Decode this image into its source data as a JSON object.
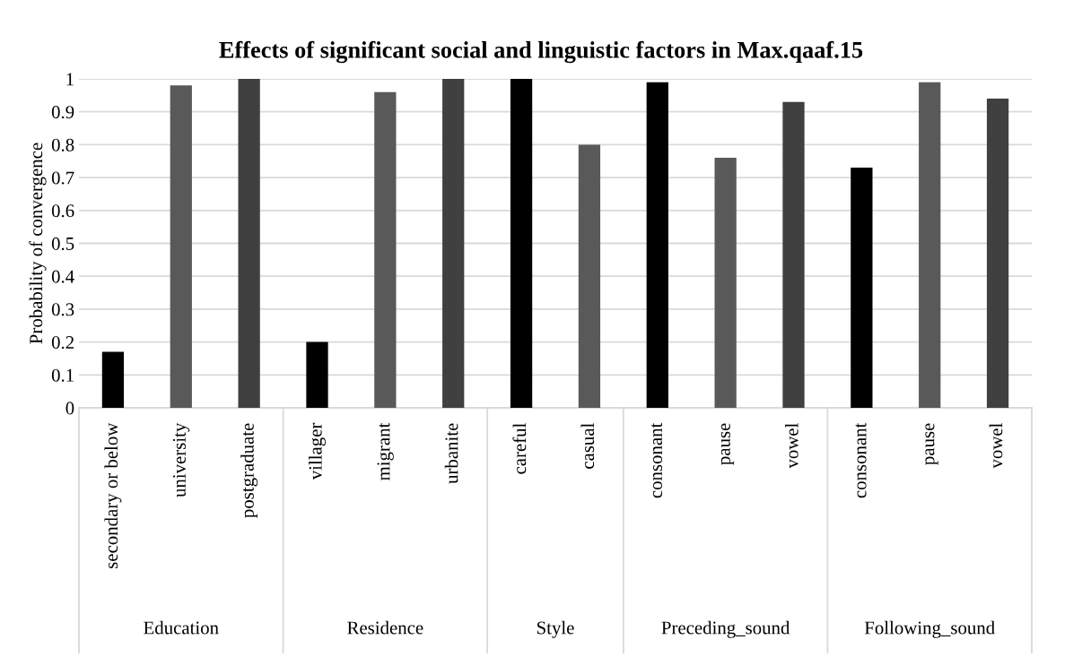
{
  "chart_data": {
    "type": "bar",
    "title": "Effects of significant social and linguistic factors in Max.qaaf.15",
    "ylabel": "Probability of convergence",
    "categories": [
      "secondary or below",
      "university",
      "postgraduate",
      "villager",
      "migrant",
      "urbanite",
      "careful",
      "casual",
      "consonant",
      "pause",
      "vowel",
      "consonant",
      "pause",
      "vowel"
    ],
    "values": [
      0.17,
      0.98,
      1.0,
      0.2,
      0.96,
      1.0,
      1.0,
      0.8,
      0.99,
      0.76,
      0.93,
      0.73,
      0.99,
      0.94
    ],
    "colors": [
      "#000000",
      "#595959",
      "#404040",
      "#000000",
      "#595959",
      "#404040",
      "#000000",
      "#595959",
      "#000000",
      "#595959",
      "#404040",
      "#000000",
      "#595959",
      "#404040"
    ],
    "ylim": [
      0,
      1
    ],
    "yticks": [
      0,
      0.1,
      0.2,
      0.3,
      0.4,
      0.5,
      0.6,
      0.7,
      0.8,
      0.9,
      1
    ],
    "grid": "y",
    "annotations": [
      "Education",
      "Residence",
      "Style",
      "Preceding_sound",
      "Following_sound"
    ]
  }
}
